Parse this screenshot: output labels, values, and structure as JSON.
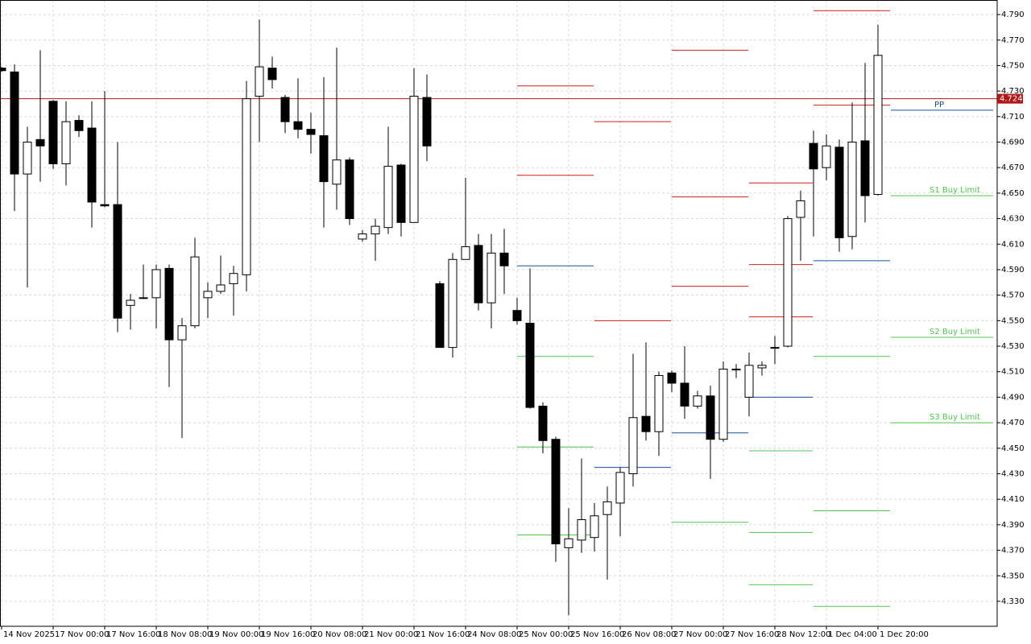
{
  "chart_data": {
    "type": "candlestick",
    "categories": [
      "14 Nov 2025",
      null,
      null,
      null,
      "17 Nov 00:00",
      null,
      null,
      null,
      "17 Nov 16:00",
      null,
      null,
      null,
      "18 Nov 08:00",
      null,
      null,
      null,
      "19 Nov 00:00",
      null,
      null,
      null,
      "19 Nov 16:00",
      null,
      null,
      null,
      "20 Nov 08:00",
      null,
      null,
      null,
      "21 Nov 00:00",
      null,
      null,
      null,
      "21 Nov 16:00",
      null,
      null,
      null,
      "24 Nov 08:00",
      null,
      null,
      null,
      "25 Nov 00:00",
      null,
      null,
      null,
      "25 Nov 16:00",
      null,
      null,
      null,
      "26 Nov 08:00",
      null,
      null,
      null,
      "27 Nov 00:00",
      null,
      null,
      null,
      "27 Nov 16:00",
      null,
      null,
      null,
      "28 Nov 12:00",
      null,
      null,
      null,
      "1 Dec 04:00",
      null,
      null,
      null,
      "1 Dec 20:00"
    ],
    "open": [
      4.748,
      4.745,
      4.665,
      4.692,
      4.722,
      4.673,
      4.707,
      4.701,
      4.641,
      4.641,
      4.562,
      4.568,
      4.568,
      4.591,
      4.535,
      4.546,
      4.568,
      4.573,
      4.579,
      4.586,
      4.726,
      4.748,
      4.725,
      4.706,
      4.7,
      4.695,
      4.657,
      4.676,
      4.614,
      4.618,
      4.623,
      4.672,
      4.627,
      4.725,
      4.579,
      4.529,
      4.598,
      4.609,
      4.564,
      4.603,
      4.558,
      4.548,
      4.483,
      4.457,
      4.372,
      4.378,
      4.38,
      4.398,
      4.407,
      4.43,
      4.475,
      4.463,
      4.509,
      4.501,
      4.483,
      4.491,
      4.457,
      4.512,
      4.49,
      4.513,
      4.529,
      4.53,
      4.631,
      4.689,
      4.67,
      4.686,
      4.616,
      4.691,
      4.649
    ],
    "high": [
      4.749,
      4.751,
      4.702,
      4.762,
      4.723,
      4.722,
      4.711,
      4.722,
      4.73,
      4.69,
      4.571,
      4.594,
      4.594,
      4.594,
      4.552,
      4.615,
      4.58,
      4.601,
      4.593,
      4.738,
      4.786,
      4.757,
      4.727,
      4.74,
      4.713,
      4.741,
      4.764,
      4.678,
      4.621,
      4.63,
      4.702,
      4.673,
      4.748,
      4.743,
      4.581,
      4.603,
      4.662,
      4.618,
      4.618,
      4.622,
      4.568,
      4.591,
      4.486,
      4.459,
      4.403,
      4.442,
      4.407,
      4.42,
      4.435,
      4.524,
      4.533,
      4.51,
      4.511,
      4.53,
      4.495,
      4.499,
      4.518,
      4.516,
      4.525,
      4.518,
      4.538,
      4.632,
      4.652,
      4.699,
      4.696,
      4.692,
      4.721,
      4.752,
      4.782
    ],
    "low": [
      4.745,
      4.636,
      4.576,
      4.659,
      4.669,
      4.656,
      4.694,
      4.623,
      4.639,
      4.541,
      4.543,
      4.567,
      4.544,
      4.498,
      4.458,
      4.544,
      4.552,
      4.571,
      4.554,
      4.573,
      4.69,
      4.732,
      4.697,
      4.693,
      4.681,
      4.623,
      4.637,
      4.625,
      4.612,
      4.597,
      4.618,
      4.616,
      4.627,
      4.675,
      4.529,
      4.521,
      4.598,
      4.558,
      4.544,
      4.571,
      4.547,
      4.481,
      4.446,
      4.361,
      4.319,
      4.368,
      4.369,
      4.347,
      4.381,
      4.42,
      4.456,
      4.444,
      4.494,
      4.473,
      4.481,
      4.426,
      4.455,
      4.505,
      4.475,
      4.507,
      4.516,
      4.529,
      4.597,
      4.616,
      4.66,
      4.604,
      4.606,
      4.627,
      4.648
    ],
    "close": [
      4.746,
      4.665,
      4.69,
      4.687,
      4.673,
      4.706,
      4.699,
      4.643,
      4.64,
      4.552,
      4.566,
      4.568,
      4.59,
      4.535,
      4.546,
      4.6,
      4.573,
      4.578,
      4.587,
      4.724,
      4.749,
      4.739,
      4.706,
      4.7,
      4.696,
      4.659,
      4.676,
      4.63,
      4.618,
      4.624,
      4.671,
      4.627,
      4.726,
      4.687,
      4.529,
      4.598,
      4.608,
      4.564,
      4.603,
      4.593,
      4.55,
      4.482,
      4.456,
      4.375,
      4.379,
      4.394,
      4.397,
      4.408,
      4.431,
      4.474,
      4.463,
      4.507,
      4.501,
      4.483,
      4.491,
      4.457,
      4.512,
      4.512,
      4.515,
      4.515,
      4.529,
      4.63,
      4.644,
      4.669,
      4.687,
      4.615,
      4.69,
      4.648,
      4.758
    ],
    "up_color": "#ffffff",
    "down_color": "#000000",
    "pivots": [
      {
        "levels": [
          4.734,
          4.664,
          4.593,
          4.522,
          4.451,
          4.382
        ],
        "colors": [
          "#cc1f1f",
          "#cc1f1f",
          "#1f4e9c",
          "#52c452",
          "#52c452",
          "#52c452"
        ]
      },
      {
        "levels": [
          4.706,
          4.55,
          4.435
        ],
        "colors": [
          "#cc1f1f",
          "#cc1f1f",
          "#1f4e9c"
        ]
      },
      {
        "levels": [
          4.762,
          4.647,
          4.577,
          4.462,
          4.392
        ],
        "colors": [
          "#cc1f1f",
          "#cc1f1f",
          "#cc1f1f",
          "#1f4e9c",
          "#52c452"
        ]
      },
      {
        "levels": [
          4.658,
          4.594,
          4.553,
          4.49,
          4.448,
          4.384,
          4.343
        ],
        "colors": [
          "#cc1f1f",
          "#cc1f1f",
          "#cc1f1f",
          "#1f4e9c",
          "#52c452",
          "#52c452",
          "#52c452"
        ]
      },
      {
        "levels": [
          4.793,
          4.719,
          4.597,
          4.522,
          4.401,
          4.326
        ],
        "colors": [
          "#cc1f1f",
          "#cc1f1f",
          "#1f4e9c",
          "#52c452",
          "#52c452",
          "#52c452"
        ]
      }
    ],
    "orders": [
      {
        "label": "PP",
        "value": 4.715,
        "color": "#1f4e9c"
      },
      {
        "label": "S1 Buy Limit",
        "value": 4.648,
        "color": "#52c452"
      },
      {
        "label": "S2 Buy Limit",
        "value": 4.537,
        "color": "#52c452"
      },
      {
        "label": "S3 Buy Limit",
        "value": 4.47,
        "color": "#52c452"
      }
    ],
    "last_price": 4.724,
    "last_price_color": "#b01818",
    "ylim": [
      4.3104,
      4.8014
    ],
    "yticks": [
      {
        "value": 4.79,
        "label": "4.790"
      },
      {
        "value": 4.77,
        "label": "4.770"
      },
      {
        "value": 4.75,
        "label": "4.750"
      },
      {
        "value": 4.73,
        "label": "4.730"
      },
      {
        "value": 4.71,
        "label": "4.710"
      },
      {
        "value": 4.69,
        "label": "4.690"
      },
      {
        "value": 4.67,
        "label": "4.670"
      },
      {
        "value": 4.65,
        "label": "4.650"
      },
      {
        "value": 4.63,
        "label": "4.630"
      },
      {
        "value": 4.61,
        "label": "4.610"
      },
      {
        "value": 4.59,
        "label": "4.590"
      },
      {
        "value": 4.57,
        "label": "4.570"
      },
      {
        "value": 4.55,
        "label": "4.550"
      },
      {
        "value": 4.53,
        "label": "4.530"
      },
      {
        "value": 4.51,
        "label": "4.510"
      },
      {
        "value": 4.49,
        "label": "4.490"
      },
      {
        "value": 4.47,
        "label": "4.470"
      },
      {
        "value": 4.45,
        "label": "4.450"
      },
      {
        "value": 4.43,
        "label": "4.430"
      },
      {
        "value": 4.41,
        "label": "4.410"
      },
      {
        "value": 4.39,
        "label": "4.390"
      },
      {
        "value": 4.37,
        "label": "4.370"
      },
      {
        "value": 4.35,
        "label": "4.350"
      },
      {
        "value": 4.33,
        "label": "4.330"
      }
    ],
    "grid": true
  }
}
